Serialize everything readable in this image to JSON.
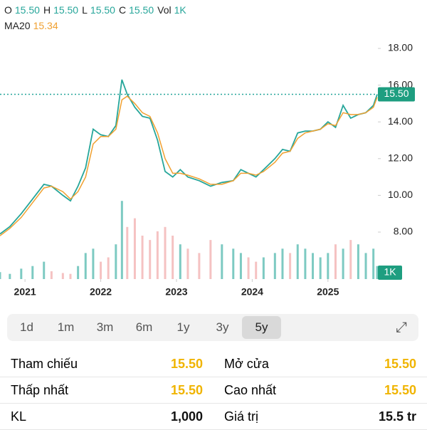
{
  "header": {
    "ohlc": [
      {
        "key": "O",
        "value": "15.50"
      },
      {
        "key": "H",
        "value": "15.50"
      },
      {
        "key": "L",
        "value": "15.50"
      },
      {
        "key": "C",
        "value": "15.50"
      },
      {
        "key": "Vol",
        "value": "1K"
      }
    ],
    "ma": {
      "key": "MA20",
      "value": "15.34"
    }
  },
  "chart_data": {
    "type": "line",
    "x": [
      2020.67,
      2020.8,
      2020.95,
      2021.1,
      2021.25,
      2021.35,
      2021.5,
      2021.6,
      2021.7,
      2021.8,
      2021.9,
      2022.0,
      2022.1,
      2022.2,
      2022.28,
      2022.35,
      2022.45,
      2022.55,
      2022.65,
      2022.75,
      2022.85,
      2022.95,
      2023.05,
      2023.15,
      2023.3,
      2023.45,
      2023.6,
      2023.75,
      2023.85,
      2023.95,
      2024.05,
      2024.15,
      2024.3,
      2024.4,
      2024.5,
      2024.6,
      2024.7,
      2024.8,
      2024.9,
      2025.0,
      2025.1,
      2025.2,
      2025.3,
      2025.4,
      2025.5,
      2025.6,
      2025.65
    ],
    "series": [
      {
        "color": "#26a69a",
        "values": [
          7.9,
          8.3,
          9.0,
          9.8,
          10.6,
          10.5,
          10.0,
          9.7,
          10.5,
          11.5,
          13.6,
          13.3,
          13.2,
          13.8,
          16.3,
          15.5,
          14.8,
          14.3,
          14.2,
          13.0,
          11.3,
          11.0,
          11.4,
          11.0,
          10.8,
          10.5,
          10.7,
          10.8,
          11.4,
          11.2,
          11.0,
          11.4,
          12.0,
          12.5,
          12.4,
          13.4,
          13.5,
          13.5,
          13.6,
          14.0,
          13.7,
          14.9,
          14.2,
          14.4,
          14.5,
          14.9,
          15.5
        ]
      },
      {
        "name": "MA20",
        "color": "#f0a030",
        "values": [
          7.8,
          8.2,
          8.8,
          9.6,
          10.4,
          10.5,
          10.2,
          9.8,
          10.2,
          11.0,
          12.8,
          13.2,
          13.2,
          13.6,
          15.2,
          15.4,
          15.0,
          14.5,
          14.3,
          13.4,
          12.0,
          11.2,
          11.2,
          11.1,
          10.9,
          10.6,
          10.6,
          10.8,
          11.2,
          11.2,
          11.1,
          11.3,
          11.8,
          12.3,
          12.4,
          13.1,
          13.4,
          13.5,
          13.6,
          13.9,
          13.8,
          14.5,
          14.4,
          14.4,
          14.5,
          14.8,
          15.34
        ]
      }
    ],
    "volume": {
      "values": [
        80000,
        60000,
        120000,
        150000,
        200000,
        90000,
        70000,
        60000,
        150000,
        300000,
        350000,
        200000,
        250000,
        400000,
        900000,
        600000,
        700000,
        500000,
        450000,
        550000,
        600000,
        500000,
        400000,
        350000,
        300000,
        450000,
        400000,
        350000,
        300000,
        250000,
        200000,
        250000,
        300000,
        350000,
        300000,
        400000,
        350000,
        300000,
        250000,
        300000,
        400000,
        350000,
        450000,
        400000,
        300000,
        350000,
        150000
      ],
      "ylim": [
        0,
        1000000
      ],
      "up_color": "#26a69a",
      "down_color": "#ef9a9a"
    },
    "xlim": [
      2020.67,
      2025.65
    ],
    "xticks": [
      2021,
      2022,
      2023,
      2024,
      2025
    ],
    "ylim": [
      7.2,
      18.6
    ],
    "yticks": [
      {
        "value": 8,
        "label": "8.00"
      },
      {
        "value": 10,
        "label": "10.00"
      },
      {
        "value": 12,
        "label": "12.00"
      },
      {
        "value": 14,
        "label": "14.00"
      },
      {
        "value": 16,
        "label": "16.00"
      },
      {
        "value": 18,
        "label": "18.00"
      }
    ],
    "last_price": {
      "value": 15.5,
      "label": "15.50"
    },
    "last_volume": {
      "value": 1000,
      "label": "1K"
    }
  },
  "tabs": {
    "items": [
      "1d",
      "1m",
      "3m",
      "6m",
      "1y",
      "3y",
      "5y"
    ],
    "selected": 6
  },
  "stats": {
    "rows": [
      [
        "Tham chiếu",
        "15.50",
        "Mở cửa",
        "15.50"
      ],
      [
        "Thấp nhất",
        "15.50",
        "Cao nhất",
        "15.50"
      ],
      [
        "KL",
        "1,000",
        "Giá trị",
        "15.5 tr"
      ]
    ]
  }
}
